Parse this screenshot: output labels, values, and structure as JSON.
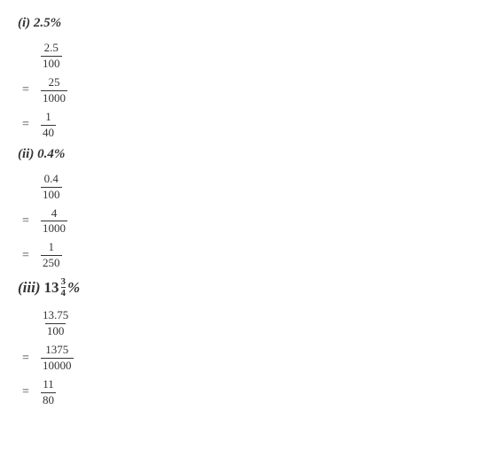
{
  "text_color": "#333333",
  "background_color": "#ffffff",
  "sections": {
    "i": {
      "label_prefix": "(i) ",
      "percent": "2.5%",
      "steps": [
        {
          "num": "2.5",
          "den": "100",
          "show_eq": false
        },
        {
          "num": "25",
          "den": "1000",
          "show_eq": true
        },
        {
          "num": "1",
          "den": "40",
          "show_eq": true
        }
      ]
    },
    "ii": {
      "label_prefix": "(ii) ",
      "percent": "0.4%",
      "steps": [
        {
          "num": "0.4",
          "den": "100",
          "show_eq": false
        },
        {
          "num": "4",
          "den": "1000",
          "show_eq": true
        },
        {
          "num": "1",
          "den": "250",
          "show_eq": true
        }
      ]
    },
    "iii": {
      "label_prefix": "(iii) ",
      "whole": "13",
      "frac_num": "3",
      "frac_den": "4",
      "percent_sign": "%",
      "steps": [
        {
          "num": "13.75",
          "den": "100",
          "show_eq": false
        },
        {
          "num": "1375",
          "den": "10000",
          "show_eq": true
        },
        {
          "num": "11",
          "den": "80",
          "show_eq": true
        }
      ]
    }
  }
}
